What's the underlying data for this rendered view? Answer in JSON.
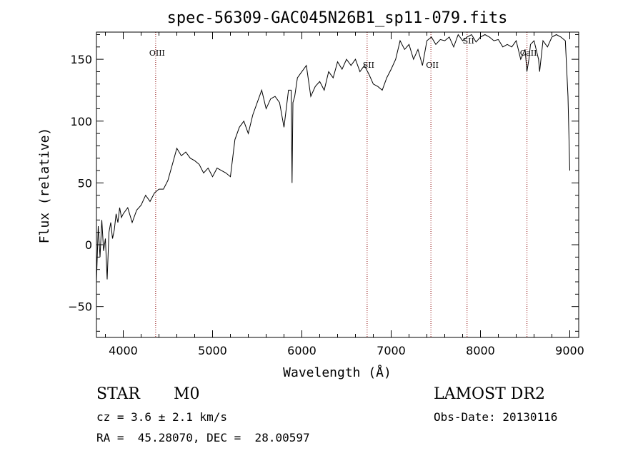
{
  "chart_data": {
    "type": "line",
    "title": "spec-56309-GAC045N26B1_sp11-079.fits",
    "xlabel": "Wavelength (Å)",
    "ylabel": "Flux (relative)",
    "xlim": [
      3700,
      9100
    ],
    "ylim": [
      -75,
      172
    ],
    "xticks": [
      4000,
      5000,
      6000,
      7000,
      8000,
      9000
    ],
    "yticks": [
      -50,
      0,
      50,
      100,
      150
    ],
    "line_color": "#000000",
    "marker_color": "#8b0000",
    "spectral_lines": [
      {
        "name": "OIII",
        "wavelength": 4363
      },
      {
        "name": "SII",
        "wavelength": 6731
      },
      {
        "name": "OII",
        "wavelength": 7445
      },
      {
        "name": "SII",
        "wavelength": 7850
      },
      {
        "name": "CaII",
        "wavelength": 8521
      }
    ],
    "series": [
      {
        "x": [
          3700,
          3720,
          3740,
          3760,
          3780,
          3800,
          3820,
          3840,
          3860,
          3880,
          3900,
          3920,
          3940,
          3960,
          3980,
          4000,
          4050,
          4100,
          4150,
          4200,
          4250,
          4300,
          4350,
          4400,
          4450,
          4500,
          4550,
          4600,
          4650,
          4700,
          4750,
          4800,
          4850,
          4900,
          4950,
          5000,
          5050,
          5100,
          5150,
          5200,
          5250,
          5300,
          5350,
          5400,
          5450,
          5500,
          5550,
          5600,
          5650,
          5700,
          5750,
          5800,
          5850,
          5880,
          5890,
          5900,
          5920,
          5950,
          6000,
          6050,
          6100,
          6150,
          6200,
          6250,
          6300,
          6350,
          6400,
          6450,
          6500,
          6550,
          6600,
          6650,
          6700,
          6750,
          6800,
          6850,
          6900,
          6950,
          7000,
          7050,
          7100,
          7150,
          7200,
          7250,
          7300,
          7350,
          7400,
          7450,
          7500,
          7550,
          7600,
          7650,
          7700,
          7750,
          7800,
          7850,
          7900,
          7950,
          8000,
          8050,
          8100,
          8150,
          8200,
          8250,
          8300,
          8350,
          8400,
          8450,
          8500,
          8520,
          8542,
          8560,
          8600,
          8650,
          8662,
          8700,
          8750,
          8800,
          8850,
          8900,
          8950,
          8980,
          9000
        ],
        "y": [
          -30,
          15,
          -10,
          20,
          -5,
          5,
          -28,
          10,
          18,
          5,
          12,
          25,
          18,
          30,
          22,
          25,
          30,
          18,
          28,
          32,
          40,
          35,
          42,
          45,
          45,
          52,
          65,
          78,
          72,
          75,
          70,
          68,
          65,
          58,
          62,
          55,
          62,
          60,
          58,
          55,
          85,
          95,
          100,
          90,
          105,
          115,
          125,
          110,
          118,
          120,
          115,
          95,
          125,
          125,
          50,
          115,
          120,
          135,
          140,
          145,
          120,
          128,
          132,
          125,
          140,
          135,
          148,
          142,
          150,
          145,
          150,
          140,
          145,
          138,
          130,
          128,
          125,
          135,
          142,
          150,
          165,
          158,
          162,
          150,
          158,
          145,
          165,
          168,
          162,
          166,
          165,
          168,
          160,
          170,
          165,
          168,
          170,
          164,
          168,
          170,
          168,
          165,
          166,
          160,
          162,
          160,
          165,
          150,
          158,
          140,
          150,
          162,
          165,
          150,
          140,
          165,
          160,
          168,
          170,
          168,
          165,
          120,
          60
        ]
      }
    ]
  },
  "footer": {
    "object_class": "STAR",
    "subclass": "M0",
    "redshift": "cz = 3.6 ± 2.1 km/s",
    "coords": "RA =  45.28070, DEC =  28.00597",
    "survey": "LAMOST DR2",
    "obs_date": "Obs-Date: 20130116"
  }
}
